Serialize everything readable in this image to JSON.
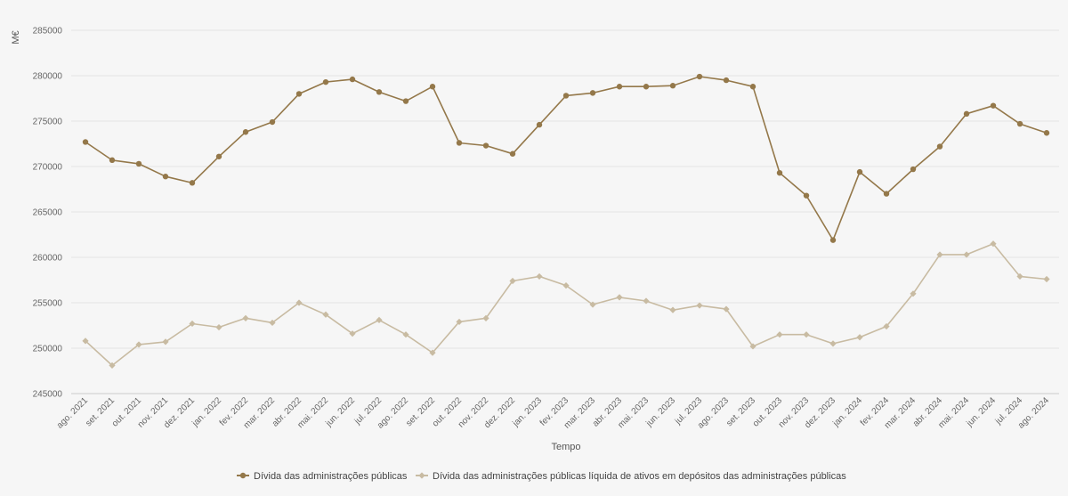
{
  "chart_data": {
    "type": "line",
    "xlabel": "Tempo",
    "ylabel": "M€",
    "ylim": [
      245000,
      285000
    ],
    "yticks": [
      245000,
      250000,
      255000,
      260000,
      265000,
      270000,
      275000,
      280000,
      285000
    ],
    "grid": true,
    "legend_position": "bottom",
    "categories": [
      "ago. 2021",
      "set. 2021",
      "out. 2021",
      "nov. 2021",
      "dez. 2021",
      "jan. 2022",
      "fev. 2022",
      "mar. 2022",
      "abr. 2022",
      "mai. 2022",
      "jun. 2022",
      "jul. 2022",
      "ago. 2022",
      "set. 2022",
      "out. 2022",
      "nov. 2022",
      "dez. 2022",
      "jan. 2023",
      "fev. 2023",
      "mar. 2023",
      "abr. 2023",
      "mai. 2023",
      "jun. 2023",
      "jul. 2023",
      "ago. 2023",
      "set. 2023",
      "out. 2023",
      "nov. 2023",
      "dez. 2023",
      "jan. 2024",
      "fev. 2024",
      "mar. 2024",
      "abr. 2024",
      "mai. 2024",
      "jun. 2024",
      "jul. 2024",
      "ago. 2024"
    ],
    "series": [
      {
        "name": "Dívida das administrações públicas",
        "color": "#94784a",
        "marker": "circle",
        "values": [
          272700,
          270700,
          270300,
          268900,
          268200,
          271100,
          273800,
          274900,
          278000,
          279300,
          279600,
          278200,
          277200,
          278800,
          272600,
          272300,
          271400,
          274600,
          277800,
          278100,
          278800,
          278800,
          278900,
          279900,
          279500,
          278800,
          269300,
          266800,
          261900,
          269400,
          267000,
          269700,
          272200,
          275800,
          276700,
          274700,
          273700
        ]
      },
      {
        "name": "Dívida das administrações públicas líquida de ativos em depósitos das administrações públicas",
        "color": "#c8bba2",
        "marker": "diamond",
        "values": [
          250800,
          248100,
          250400,
          250700,
          252700,
          252300,
          253300,
          252800,
          255000,
          253700,
          251600,
          253100,
          251500,
          249500,
          252900,
          253300,
          257400,
          257900,
          256900,
          254800,
          255600,
          255200,
          254200,
          254700,
          254300,
          250200,
          251500,
          251500,
          250500,
          251200,
          252400,
          256000,
          260300,
          260300,
          261500,
          257900,
          257600
        ]
      }
    ]
  }
}
